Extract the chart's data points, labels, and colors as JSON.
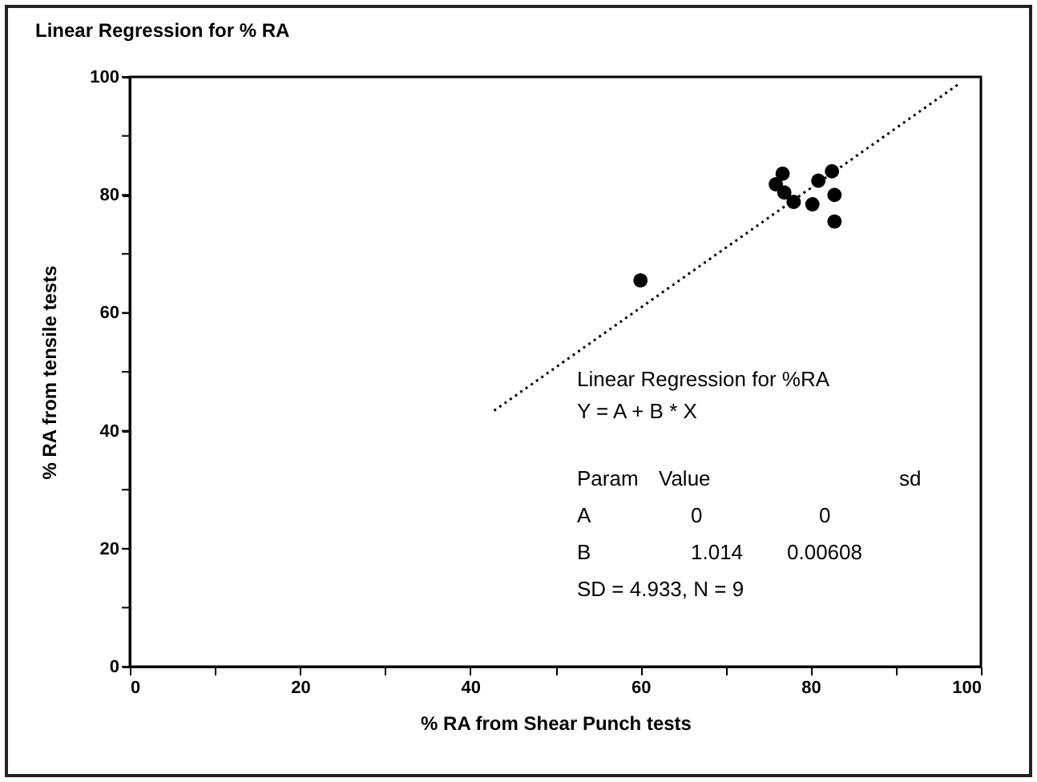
{
  "chart_data": {
    "type": "scatter",
    "title": "Linear Regression for % RA",
    "xlabel": "% RA from Shear Punch tests",
    "ylabel": "% RA from tensile tests",
    "xlim": [
      0,
      100
    ],
    "ylim": [
      0,
      100
    ],
    "xticks": [
      0,
      {
        "value": 10,
        "label": null
      },
      20,
      {
        "value": 30,
        "label": null
      },
      40,
      {
        "value": 50,
        "label": null
      },
      60,
      {
        "value": 70,
        "label": null
      },
      80,
      {
        "value": 90,
        "label": null
      },
      100
    ],
    "yticks": [
      0,
      {
        "value": 10,
        "label": null
      },
      20,
      {
        "value": 30,
        "label": null
      },
      40,
      {
        "value": 50,
        "label": null
      },
      60,
      {
        "value": 70,
        "label": null
      },
      80,
      {
        "value": 90,
        "label": null
      },
      100
    ],
    "grid": false,
    "marker": "circle",
    "series": [
      {
        "color": "#000000",
        "x": [
          60,
          76.7,
          75.9,
          76.9,
          78.0,
          80.2,
          80.9,
          82.5,
          82.8,
          82.8
        ],
        "values": [
          65.5,
          83.6,
          81.8,
          80.4,
          78.8,
          78.4,
          82.4,
          84.0,
          80.0,
          75.5
        ]
      },
      {
        "type": "line",
        "color": "#000000",
        "line_style": "dotted",
        "marker": "none",
        "x": [
          42.8,
          97.4
        ],
        "values": [
          43.4,
          98.8
        ]
      }
    ],
    "annotations": [
      "Linear Regression for %RA",
      "Y = A + B * X",
      "Param",
      "Value",
      "sd",
      "A",
      "0",
      "0",
      "B",
      "1.014",
      "0.00608",
      "SD = 4.933, N = 9"
    ]
  }
}
